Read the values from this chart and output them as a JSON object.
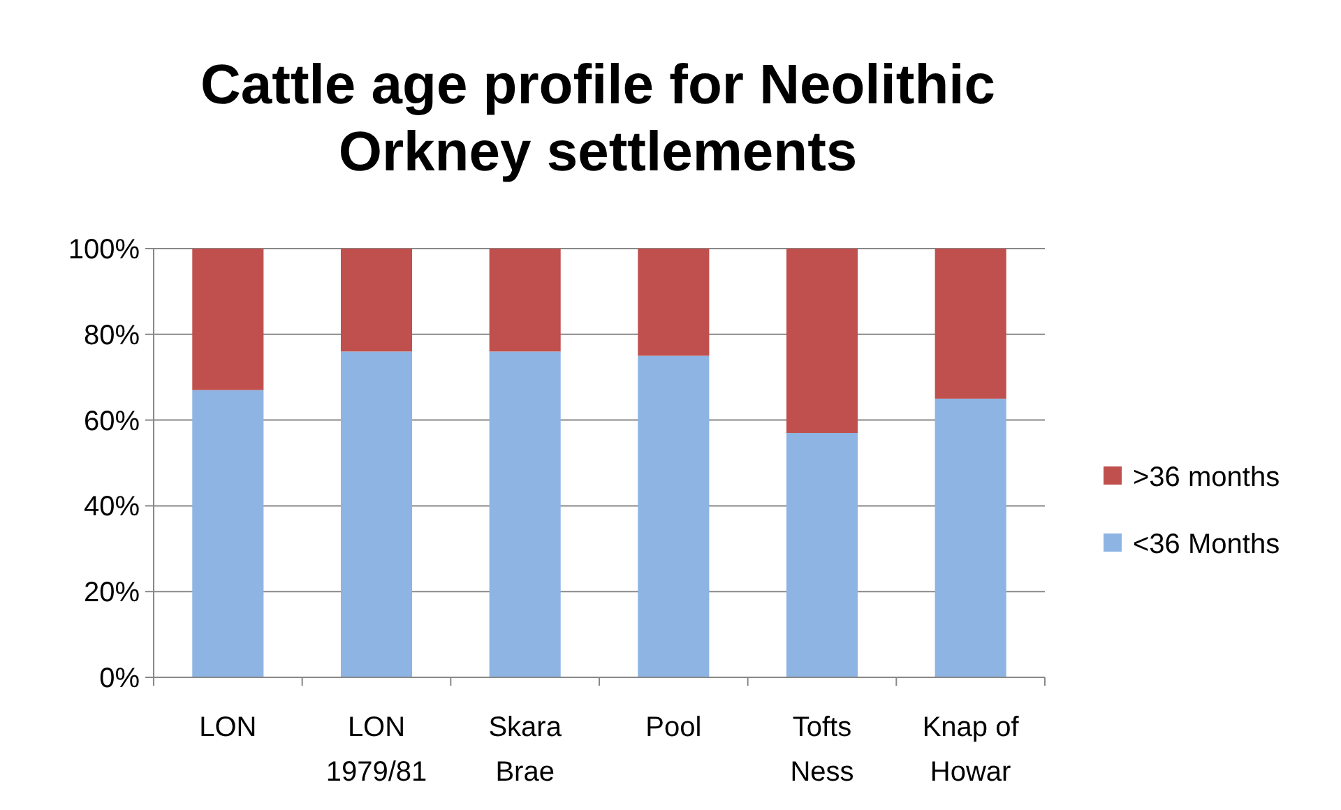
{
  "chart_data": {
    "type": "bar",
    "title": "Cattle age profile for Neolithic Orkney settlements",
    "stacked": true,
    "categories": [
      "LON",
      "LON 1979/81",
      "Skara Brae",
      "Pool",
      "Tofts Ness",
      "Knap of Howar"
    ],
    "series": [
      {
        "name": "<36 Months",
        "color": "#8eb4e3",
        "values": [
          67,
          76,
          76,
          75,
          57,
          65
        ]
      },
      {
        "name": ">36 months",
        "color": "#c0504d",
        "values": [
          33,
          24,
          24,
          25,
          43,
          35
        ]
      }
    ],
    "ylim": [
      0,
      100
    ],
    "yticks": [
      {
        "value": 0,
        "label": "0%"
      },
      {
        "value": 20,
        "label": "20%"
      },
      {
        "value": 40,
        "label": "40%"
      },
      {
        "value": 60,
        "label": "60%"
      },
      {
        "value": 80,
        "label": "80%"
      },
      {
        "value": 100,
        "label": "100%"
      }
    ],
    "grid": "y",
    "legend": "right"
  }
}
